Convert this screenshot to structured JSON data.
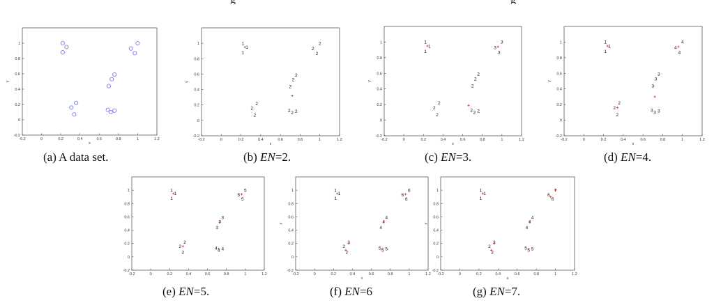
{
  "header_fragments": [
    "g",
    "g"
  ],
  "panels": [
    {
      "id": "a",
      "caption_plain": "(a) A data set.",
      "caption_pre": "",
      "caption_italic": "",
      "caption_post": ""
    },
    {
      "id": "b",
      "caption_plain": "",
      "caption_pre": "(b) ",
      "caption_italic": "EN",
      "caption_post": "=2."
    },
    {
      "id": "c",
      "caption_plain": "",
      "caption_pre": "(c) ",
      "caption_italic": "EN",
      "caption_post": "=3."
    },
    {
      "id": "d",
      "caption_plain": "",
      "caption_pre": "(d) ",
      "caption_italic": "EN",
      "caption_post": "=4."
    },
    {
      "id": "e",
      "caption_plain": "",
      "caption_pre": "(e) ",
      "caption_italic": "EN",
      "caption_post": "=5."
    },
    {
      "id": "f",
      "caption_plain": "",
      "caption_pre": "(f) ",
      "caption_italic": "EN",
      "caption_post": "=6"
    },
    {
      "id": "g",
      "caption_plain": "",
      "caption_pre": "(g) ",
      "caption_italic": "EN",
      "caption_post": "=7."
    }
  ],
  "chart_data": [
    {
      "type": "scatter",
      "panel": "a",
      "xlabel": "x",
      "ylabel": "y",
      "xlim": [
        -0.2,
        1.2
      ],
      "ylim": [
        -0.2,
        1.2
      ],
      "xticks": [
        -0.2,
        0,
        0.2,
        0.4,
        0.6,
        0.8,
        1,
        1.2
      ],
      "yticks": [
        -0.2,
        0,
        0.2,
        0.4,
        0.6,
        0.8,
        1
      ],
      "marker": "circle",
      "points": [
        [
          0.22,
          1.0
        ],
        [
          0.26,
          0.95
        ],
        [
          0.22,
          0.88
        ],
        [
          0.36,
          0.22
        ],
        [
          0.31,
          0.16
        ],
        [
          0.34,
          0.07
        ],
        [
          0.7,
          0.44
        ],
        [
          0.73,
          0.53
        ],
        [
          0.76,
          0.59
        ],
        [
          0.69,
          0.13
        ],
        [
          0.72,
          0.1
        ],
        [
          0.76,
          0.12
        ],
        [
          0.93,
          0.93
        ],
        [
          0.97,
          0.87
        ],
        [
          1.0,
          1.0
        ]
      ],
      "centers": []
    },
    {
      "type": "scatter",
      "panel": "b",
      "xlabel": "x",
      "ylabel": "y",
      "xlim": [
        -0.2,
        1.2
      ],
      "ylim": [
        -0.2,
        1.2
      ],
      "xticks": [
        -0.2,
        0,
        0.2,
        0.4,
        0.6,
        0.8,
        1,
        1.2
      ],
      "yticks": [
        -0.2,
        0,
        0.2,
        0.4,
        0.6,
        0.8,
        1
      ],
      "marker": "label",
      "points": [
        [
          0.22,
          1.0,
          "1"
        ],
        [
          0.26,
          0.95,
          "1"
        ],
        [
          0.22,
          0.88,
          "1"
        ],
        [
          0.36,
          0.22,
          "2"
        ],
        [
          0.31,
          0.16,
          "2"
        ],
        [
          0.34,
          0.07,
          "2"
        ],
        [
          0.7,
          0.44,
          "2"
        ],
        [
          0.73,
          0.53,
          "2"
        ],
        [
          0.76,
          0.59,
          "2"
        ],
        [
          0.69,
          0.13,
          "2"
        ],
        [
          0.72,
          0.1,
          "2"
        ],
        [
          0.76,
          0.12,
          "2"
        ],
        [
          0.93,
          0.93,
          "2"
        ],
        [
          0.97,
          0.87,
          "2"
        ],
        [
          1.0,
          1.0,
          "2"
        ]
      ],
      "centers": [
        [
          0.24,
          0.95
        ],
        [
          0.72,
          0.32
        ]
      ]
    },
    {
      "type": "scatter",
      "panel": "c",
      "xlabel": "x",
      "ylabel": "y",
      "xlim": [
        -0.2,
        1.2
      ],
      "ylim": [
        -0.2,
        1.2
      ],
      "xticks": [
        -0.2,
        0,
        0.2,
        0.4,
        0.6,
        0.8,
        1,
        1.2
      ],
      "yticks": [
        -0.2,
        0,
        0.2,
        0.4,
        0.6,
        0.8,
        1
      ],
      "marker": "label",
      "points": [
        [
          0.22,
          1.0,
          "1"
        ],
        [
          0.26,
          0.95,
          "1"
        ],
        [
          0.22,
          0.88,
          "1"
        ],
        [
          0.36,
          0.22,
          "2"
        ],
        [
          0.31,
          0.16,
          "2"
        ],
        [
          0.34,
          0.07,
          "2"
        ],
        [
          0.7,
          0.44,
          "2"
        ],
        [
          0.73,
          0.53,
          "2"
        ],
        [
          0.76,
          0.59,
          "2"
        ],
        [
          0.69,
          0.13,
          "2"
        ],
        [
          0.72,
          0.1,
          "2"
        ],
        [
          0.76,
          0.12,
          "2"
        ],
        [
          0.93,
          0.93,
          "3"
        ],
        [
          0.97,
          0.87,
          "3"
        ],
        [
          1.0,
          1.0,
          "3"
        ]
      ],
      "centers": [
        [
          0.24,
          0.95
        ],
        [
          0.66,
          0.19
        ],
        [
          0.96,
          0.94
        ]
      ]
    },
    {
      "type": "scatter",
      "panel": "d",
      "xlabel": "x",
      "ylabel": "y",
      "xlim": [
        -0.2,
        1.2
      ],
      "ylim": [
        -0.2,
        1.2
      ],
      "xticks": [
        -0.2,
        0,
        0.2,
        0.4,
        0.6,
        0.8,
        1,
        1.2
      ],
      "yticks": [
        -0.2,
        0,
        0.2,
        0.4,
        0.6,
        0.8,
        1
      ],
      "marker": "label",
      "points": [
        [
          0.22,
          1.0,
          "1"
        ],
        [
          0.26,
          0.95,
          "1"
        ],
        [
          0.22,
          0.88,
          "1"
        ],
        [
          0.36,
          0.22,
          "2"
        ],
        [
          0.31,
          0.16,
          "2"
        ],
        [
          0.34,
          0.07,
          "2"
        ],
        [
          0.7,
          0.44,
          "3"
        ],
        [
          0.73,
          0.53,
          "3"
        ],
        [
          0.76,
          0.59,
          "3"
        ],
        [
          0.69,
          0.13,
          "3"
        ],
        [
          0.72,
          0.1,
          "3"
        ],
        [
          0.76,
          0.12,
          "3"
        ],
        [
          0.93,
          0.93,
          "4"
        ],
        [
          0.97,
          0.87,
          "4"
        ],
        [
          1.0,
          1.0,
          "4"
        ]
      ],
      "centers": [
        [
          0.24,
          0.95
        ],
        [
          0.34,
          0.16
        ],
        [
          0.72,
          0.3
        ],
        [
          0.96,
          0.94
        ]
      ]
    },
    {
      "type": "scatter",
      "panel": "e",
      "xlabel": "",
      "ylabel": "",
      "xlim": [
        -0.2,
        1.2
      ],
      "ylim": [
        -0.2,
        1.2
      ],
      "xticks": [
        -0.2,
        0,
        0.2,
        0.4,
        0.6,
        0.8,
        1,
        1.2
      ],
      "yticks": [
        -0.2,
        0,
        0.2,
        0.4,
        0.6,
        0.8,
        1
      ],
      "marker": "label",
      "points": [
        [
          0.22,
          1.0,
          "1"
        ],
        [
          0.26,
          0.95,
          "1"
        ],
        [
          0.22,
          0.88,
          "1"
        ],
        [
          0.36,
          0.22,
          "2"
        ],
        [
          0.31,
          0.16,
          "2"
        ],
        [
          0.34,
          0.07,
          "2"
        ],
        [
          0.7,
          0.44,
          "3"
        ],
        [
          0.73,
          0.53,
          "3"
        ],
        [
          0.76,
          0.59,
          "3"
        ],
        [
          0.69,
          0.13,
          "4"
        ],
        [
          0.72,
          0.1,
          "4"
        ],
        [
          0.76,
          0.12,
          "4"
        ],
        [
          0.93,
          0.93,
          "5"
        ],
        [
          0.97,
          0.87,
          "5"
        ],
        [
          1.0,
          1.0,
          "5"
        ]
      ],
      "centers": [
        [
          0.24,
          0.95
        ],
        [
          0.34,
          0.16
        ],
        [
          0.73,
          0.52
        ],
        [
          0.72,
          0.12
        ],
        [
          0.96,
          0.94
        ]
      ]
    },
    {
      "type": "scatter",
      "panel": "f",
      "xlabel": "x",
      "ylabel": "y",
      "xlim": [
        -0.2,
        1.2
      ],
      "ylim": [
        -0.2,
        1.2
      ],
      "xticks": [
        -0.2,
        0,
        0.2,
        0.4,
        0.6,
        0.8,
        1,
        1.2
      ],
      "yticks": [
        -0.2,
        0,
        0.2,
        0.4,
        0.6,
        0.8,
        1
      ],
      "marker": "label",
      "points": [
        [
          0.22,
          1.0,
          "1"
        ],
        [
          0.26,
          0.95,
          "1"
        ],
        [
          0.22,
          0.88,
          "1"
        ],
        [
          0.36,
          0.22,
          "3"
        ],
        [
          0.31,
          0.16,
          "2"
        ],
        [
          0.34,
          0.07,
          "2"
        ],
        [
          0.7,
          0.44,
          "4"
        ],
        [
          0.73,
          0.53,
          "4"
        ],
        [
          0.76,
          0.59,
          "4"
        ],
        [
          0.69,
          0.13,
          "5"
        ],
        [
          0.72,
          0.1,
          "5"
        ],
        [
          0.76,
          0.12,
          "5"
        ],
        [
          0.93,
          0.93,
          "6"
        ],
        [
          0.97,
          0.87,
          "6"
        ],
        [
          1.0,
          1.0,
          "6"
        ]
      ],
      "centers": [
        [
          0.24,
          0.95
        ],
        [
          0.33,
          0.1
        ],
        [
          0.36,
          0.2
        ],
        [
          0.73,
          0.52
        ],
        [
          0.72,
          0.12
        ],
        [
          0.96,
          0.94
        ]
      ]
    },
    {
      "type": "scatter",
      "panel": "g",
      "xlabel": "x",
      "ylabel": "y",
      "xlim": [
        -0.2,
        1.2
      ],
      "ylim": [
        -0.2,
        1.2
      ],
      "xticks": [
        -0.2,
        0,
        0.2,
        0.4,
        0.6,
        0.8,
        1,
        1.2
      ],
      "yticks": [
        -0.2,
        0,
        0.2,
        0.4,
        0.6,
        0.8,
        1
      ],
      "marker": "label",
      "points": [
        [
          0.22,
          1.0,
          "1"
        ],
        [
          0.26,
          0.95,
          "1"
        ],
        [
          0.22,
          0.88,
          "1"
        ],
        [
          0.36,
          0.22,
          "3"
        ],
        [
          0.31,
          0.16,
          "2"
        ],
        [
          0.34,
          0.07,
          "2"
        ],
        [
          0.7,
          0.44,
          "4"
        ],
        [
          0.73,
          0.53,
          "4"
        ],
        [
          0.76,
          0.59,
          "4"
        ],
        [
          0.69,
          0.13,
          "5"
        ],
        [
          0.72,
          0.1,
          "5"
        ],
        [
          0.76,
          0.12,
          "5"
        ],
        [
          0.93,
          0.93,
          "6"
        ],
        [
          0.97,
          0.87,
          "6"
        ],
        [
          1.0,
          1.0,
          "7"
        ]
      ],
      "centers": [
        [
          0.24,
          0.95
        ],
        [
          0.33,
          0.1
        ],
        [
          0.36,
          0.2
        ],
        [
          0.73,
          0.52
        ],
        [
          0.72,
          0.12
        ],
        [
          0.95,
          0.9
        ],
        [
          1.0,
          1.0
        ]
      ]
    }
  ]
}
